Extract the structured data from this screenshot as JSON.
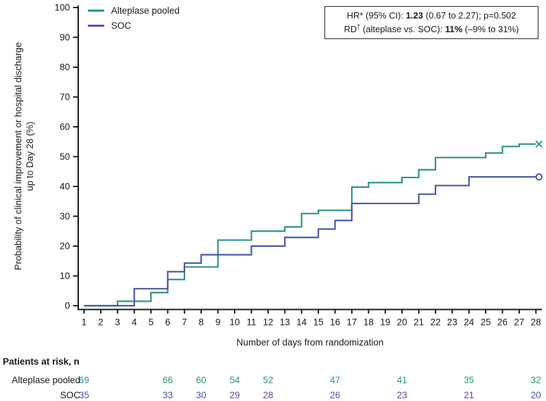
{
  "legend": {
    "items": [
      {
        "label": "Alteplase pooled",
        "color": "#2e9488"
      },
      {
        "label": "SOC",
        "color": "#4a55a8"
      }
    ]
  },
  "info_box": {
    "hr_label": "HR* (95% CI): ",
    "hr_value": "1.23",
    "hr_rest": " (0.67 to 2.27); p=0.502",
    "rd_base": "RD",
    "rd_sup": "†",
    "rd_label": " (alteplase vs. SOC): ",
    "rd_value": "11%",
    "rd_rest": " (–9% to 31%)"
  },
  "chart_data": {
    "type": "line",
    "subtype": "kaplan-meier-cumulative-incidence-step",
    "title": "",
    "xlabel": "Number of days from randomization",
    "ylabel": "Probability of clinical improvement or hospital discharge up to Day 28 (%)",
    "ylabel_lines": [
      "Probability of clinical improvement or hospital discharge",
      "up to Day 28 (%)"
    ],
    "xlim": [
      1,
      28
    ],
    "ylim": [
      0,
      100
    ],
    "xticks": [
      1,
      2,
      3,
      4,
      5,
      6,
      7,
      8,
      9,
      10,
      11,
      12,
      13,
      14,
      15,
      16,
      17,
      18,
      19,
      20,
      21,
      22,
      23,
      24,
      25,
      26,
      27,
      28
    ],
    "yticks": [
      0,
      10,
      20,
      30,
      40,
      50,
      60,
      70,
      80,
      90,
      100
    ],
    "grid": false,
    "legend_position": "top-left",
    "axis_color": "#1a1a1a",
    "series": [
      {
        "name": "Alteplase pooled",
        "color": "#2e9488",
        "end_marker": "x",
        "steps": [
          [
            1,
            0
          ],
          [
            3,
            1.5
          ],
          [
            5,
            4.4
          ],
          [
            6,
            8.8
          ],
          [
            7,
            13.0
          ],
          [
            9,
            22.0
          ],
          [
            11,
            25.0
          ],
          [
            13,
            26.4
          ],
          [
            14,
            30.9
          ],
          [
            15,
            32.0
          ],
          [
            17,
            39.8
          ],
          [
            18,
            41.3
          ],
          [
            20,
            43.0
          ],
          [
            21,
            45.6
          ],
          [
            22,
            49.7
          ],
          [
            25,
            51.2
          ],
          [
            26,
            53.4
          ],
          [
            27,
            54.2
          ],
          [
            28,
            54.2
          ]
        ]
      },
      {
        "name": "SOC",
        "color": "#4a55a8",
        "end_marker": "circle",
        "steps": [
          [
            1,
            0
          ],
          [
            4,
            5.7
          ],
          [
            6,
            11.4
          ],
          [
            7,
            14.3
          ],
          [
            8,
            17.1
          ],
          [
            11,
            20.0
          ],
          [
            13,
            22.9
          ],
          [
            15,
            25.7
          ],
          [
            16,
            28.6
          ],
          [
            17,
            34.3
          ],
          [
            21,
            37.4
          ],
          [
            22,
            40.3
          ],
          [
            24,
            43.2
          ],
          [
            28,
            43.2
          ]
        ]
      }
    ]
  },
  "risk_table": {
    "title": "Patients at risk, n",
    "days": [
      1,
      6,
      8,
      10,
      12,
      16,
      20,
      24,
      28
    ],
    "rows": [
      {
        "label": "Alteplase pooled",
        "color": "#2e9488",
        "values": [
          "69",
          "66",
          "60",
          "54",
          "52",
          "47",
          "41",
          "35",
          "32"
        ]
      },
      {
        "label": "SOC",
        "color": "#4a55a8",
        "values": [
          "35",
          "33",
          "30",
          "29",
          "28",
          "26",
          "23",
          "21",
          "20"
        ]
      }
    ]
  }
}
